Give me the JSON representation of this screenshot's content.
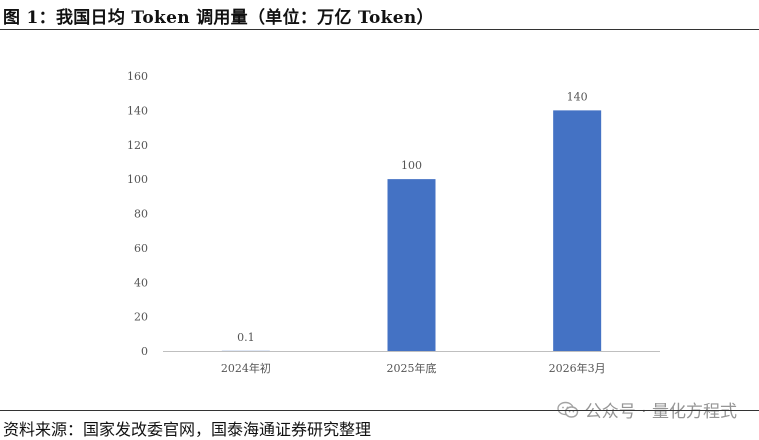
{
  "figure": {
    "title": "图 1：我国日均 Token 调用量（单位：万亿 Token）",
    "source": "资料来源：国家发改委官网，国泰海通证券研究整理"
  },
  "watermark": {
    "text": "公众号 · 量化方程式",
    "icon": "wechat-icon"
  },
  "chart_data": {
    "type": "bar",
    "title": "",
    "xlabel": "",
    "ylabel": "",
    "categories": [
      "2024年初",
      "2025年底",
      "2026年3月"
    ],
    "values": [
      0.1,
      100,
      140
    ],
    "data_labels": [
      "0.1",
      "100",
      "140"
    ],
    "ylim": [
      0,
      160
    ],
    "yticks": [
      0,
      20,
      40,
      60,
      80,
      100,
      120,
      140,
      160
    ],
    "grid": false,
    "legend": "none",
    "bar_color": "#4472C4",
    "axis_color": "#BFBFBF"
  }
}
